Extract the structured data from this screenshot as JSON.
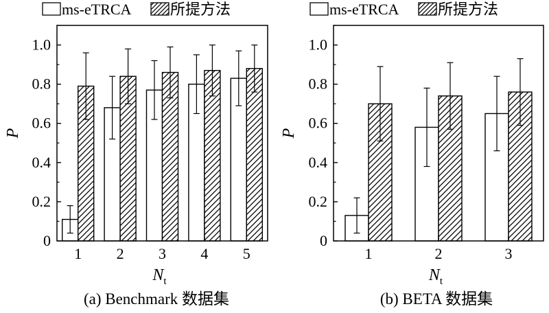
{
  "chart_data": [
    {
      "type": "bar",
      "caption": "(a) Benchmark 数据集",
      "title": "",
      "xlabel": "N",
      "xlabel_sub": "t",
      "ylabel": "P",
      "ylim": [
        0,
        1.1
      ],
      "yticks": [
        0,
        0.2,
        0.4,
        0.6,
        0.8,
        1.0
      ],
      "ytick_labels": [
        "0",
        "0.2",
        "0.4",
        "0.6",
        "0.8",
        "1.0"
      ],
      "categories": [
        "1",
        "2",
        "3",
        "4",
        "5"
      ],
      "grid": false,
      "legend_position": "top",
      "series": [
        {
          "name": "ms-eTRCA",
          "fill": "plain",
          "values": [
            0.11,
            0.68,
            0.77,
            0.8,
            0.83
          ],
          "error": [
            0.07,
            0.16,
            0.15,
            0.15,
            0.14
          ]
        },
        {
          "name": "所提方法",
          "fill": "hatch",
          "values": [
            0.79,
            0.84,
            0.86,
            0.87,
            0.88
          ],
          "error": [
            0.17,
            0.14,
            0.13,
            0.13,
            0.12
          ]
        }
      ]
    },
    {
      "type": "bar",
      "caption": "(b) BETA 数据集",
      "title": "",
      "xlabel": "N",
      "xlabel_sub": "t",
      "ylabel": "P",
      "ylim": [
        0,
        1.1
      ],
      "yticks": [
        0,
        0.2,
        0.4,
        0.6,
        0.8,
        1.0
      ],
      "ytick_labels": [
        "0",
        "0.2",
        "0.4",
        "0.6",
        "0.8",
        "1.0"
      ],
      "categories": [
        "1",
        "2",
        "3"
      ],
      "grid": false,
      "legend_position": "top",
      "series": [
        {
          "name": "ms-eTRCA",
          "fill": "plain",
          "values": [
            0.13,
            0.58,
            0.65
          ],
          "error": [
            0.09,
            0.2,
            0.19
          ]
        },
        {
          "name": "所提方法",
          "fill": "hatch",
          "values": [
            0.7,
            0.74,
            0.76
          ],
          "error": [
            0.19,
            0.17,
            0.17
          ]
        }
      ]
    }
  ],
  "colors": {
    "ink": "#000000",
    "background": "#ffffff"
  }
}
